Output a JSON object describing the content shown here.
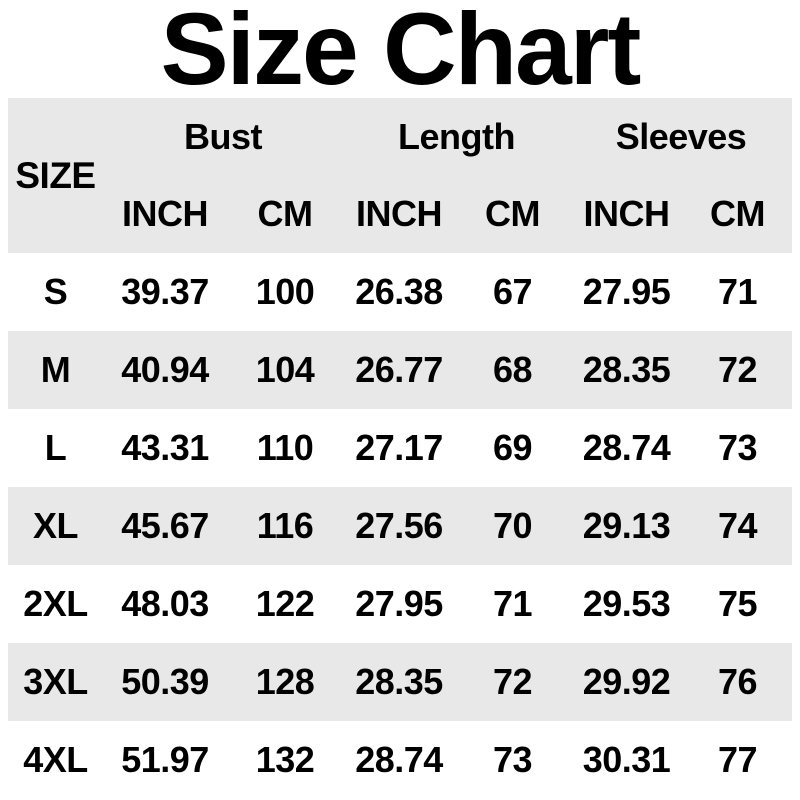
{
  "title": "Size Chart",
  "table": {
    "corner_label": "SIZE",
    "groups": [
      "Bust",
      "Length",
      "Sleeves"
    ],
    "units": [
      "INCH",
      "CM",
      "INCH",
      "CM",
      "INCH",
      "CM"
    ],
    "rows": [
      {
        "size": "S",
        "values": [
          "39.37",
          "100",
          "26.38",
          "67",
          "27.95",
          "71"
        ]
      },
      {
        "size": "M",
        "values": [
          "40.94",
          "104",
          "26.77",
          "68",
          "28.35",
          "72"
        ]
      },
      {
        "size": "L",
        "values": [
          "43.31",
          "110",
          "27.17",
          "69",
          "28.74",
          "73"
        ]
      },
      {
        "size": "XL",
        "values": [
          "45.67",
          "116",
          "27.56",
          "70",
          "29.13",
          "74"
        ]
      },
      {
        "size": "2XL",
        "values": [
          "48.03",
          "122",
          "27.95",
          "71",
          "29.53",
          "75"
        ]
      },
      {
        "size": "3XL",
        "values": [
          "50.39",
          "128",
          "28.35",
          "72",
          "29.92",
          "76"
        ]
      },
      {
        "size": "4XL",
        "values": [
          "51.97",
          "132",
          "28.74",
          "73",
          "30.31",
          "77"
        ]
      }
    ]
  },
  "colors": {
    "background": "#ffffff",
    "stripe": "#e8e8e8",
    "text": "#000000"
  },
  "chart_data": {
    "type": "table",
    "title": "Size Chart",
    "columns": [
      "SIZE",
      "Bust INCH",
      "Bust CM",
      "Length INCH",
      "Length CM",
      "Sleeves INCH",
      "Sleeves CM"
    ],
    "rows": [
      [
        "S",
        39.37,
        100,
        26.38,
        67,
        27.95,
        71
      ],
      [
        "M",
        40.94,
        104,
        26.77,
        68,
        28.35,
        72
      ],
      [
        "L",
        43.31,
        110,
        27.17,
        69,
        28.74,
        73
      ],
      [
        "XL",
        45.67,
        116,
        27.56,
        70,
        29.13,
        74
      ],
      [
        "2XL",
        48.03,
        122,
        27.95,
        71,
        29.53,
        75
      ],
      [
        "3XL",
        50.39,
        128,
        28.35,
        72,
        29.92,
        76
      ],
      [
        "4XL",
        51.97,
        132,
        28.74,
        73,
        30.31,
        77
      ]
    ]
  }
}
